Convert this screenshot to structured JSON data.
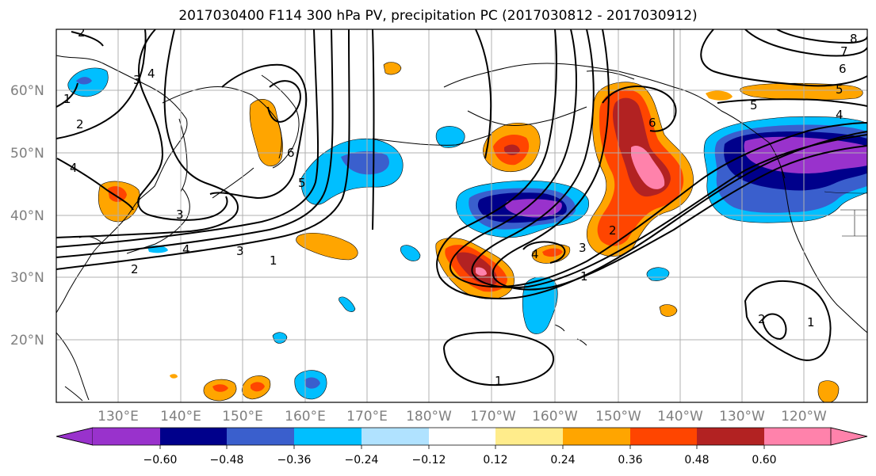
{
  "title": "2017030400 F114 300 hPa PV, precipitation PC (2017030812 - 2017030912)",
  "map": {
    "lat_labels": [
      "60°N",
      "50°N",
      "40°N",
      "30°N",
      "20°N"
    ],
    "lon_labels": [
      "130°E",
      "140°E",
      "150°E",
      "160°E",
      "170°E",
      "180°W",
      "170°W",
      "160°W",
      "150°W",
      "140°W",
      "130°W",
      "120°W"
    ],
    "contour_labels": [
      "1",
      "2",
      "3",
      "4",
      "5",
      "6",
      "7",
      "8"
    ]
  },
  "colorbar": {
    "colors": [
      "#9932cc",
      "#00008b",
      "#3a5fcd",
      "#00bfff",
      "#b0e2ff",
      "#ffffff",
      "#ffec8b",
      "#ffa500",
      "#ff4500",
      "#b22222",
      "#ff82ab"
    ],
    "tick_labels": [
      "−0.60",
      "−0.48",
      "−0.36",
      "−0.24",
      "−0.12",
      "0.12",
      "0.24",
      "0.36",
      "0.48",
      "0.60"
    ]
  },
  "palette": {
    "purple": "#9932cc",
    "navy": "#00008b",
    "royal": "#3a5fcd",
    "sky": "#00bfff",
    "pale": "#b0e2ff",
    "yellow": "#ffec8b",
    "orange": "#ffa500",
    "red": "#ff4500",
    "dark_red": "#b22222",
    "pink": "#ff82ab"
  }
}
